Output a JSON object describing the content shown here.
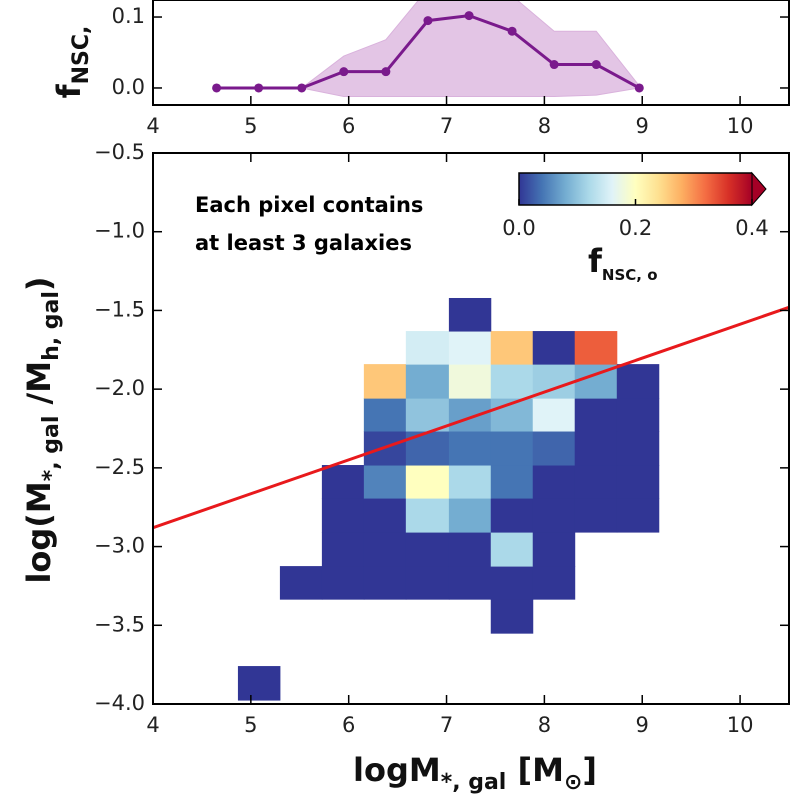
{
  "chart_data": [
    {
      "type": "line",
      "ylabel": {
        "text": [
          "f"
        ],
        "sub": [
          "NSC,"
        ]
      },
      "x": [
        4.65,
        5.08,
        5.52,
        5.95,
        6.38,
        6.81,
        7.23,
        7.67,
        8.1,
        8.53,
        8.97
      ],
      "values": [
        0,
        0,
        0,
        0.023,
        0.023,
        0.095,
        0.102,
        0.08,
        0.033,
        0.033,
        0
      ],
      "lower": [
        0,
        0,
        0,
        -0.012,
        -0.012,
        -0.012,
        -0.012,
        -0.012,
        -0.012,
        -0.01,
        0
      ],
      "upper": [
        0,
        0,
        0,
        0.045,
        0.068,
        0.14,
        0.16,
        0.13,
        0.08,
        0.08,
        0.003
      ],
      "color": "#7a1a8c",
      "band_color": "#d9b2dc",
      "xlim": [
        4,
        10.5
      ],
      "ylim": [
        -0.024,
        0.124
      ],
      "xticks": [
        4,
        5,
        6,
        7,
        8,
        9,
        10
      ],
      "yticks": [
        {
          "value": 0,
          "label": "0.0"
        },
        0.1
      ]
    },
    {
      "type": "heatmap",
      "annotation": [
        "Each pixel contains",
        "at least 3 galaxies"
      ],
      "xlabel": {
        "text": [
          "logM",
          " [M",
          "]"
        ],
        "sub": [
          "*, gal",
          "⊙"
        ]
      },
      "ylabel": {
        "text": [
          "log(M",
          " /M",
          ")"
        ],
        "sub": [
          "*, gal",
          "h, gal"
        ]
      },
      "x_edges": [
        4.868,
        5.297,
        5.726,
        6.155,
        6.584,
        7.024,
        7.452,
        7.881,
        8.31,
        8.74,
        9.169
      ],
      "y_edges": [
        -3.975,
        -3.759,
        -3.55,
        -3.334,
        -3.124,
        -2.908,
        -2.692,
        -2.482,
        -2.266,
        -2.057,
        -1.841,
        -1.631,
        -1.421
      ],
      "values": [
        [
          0,
          null,
          null,
          null,
          null,
          null,
          null,
          null,
          null,
          null
        ],
        [
          null,
          null,
          null,
          null,
          null,
          null,
          null,
          null,
          null,
          null
        ],
        [
          null,
          null,
          null,
          null,
          null,
          null,
          0,
          null,
          null,
          null
        ],
        [
          null,
          0,
          0,
          0,
          0,
          0,
          0,
          0,
          null,
          null
        ],
        [
          null,
          null,
          0,
          0,
          0,
          0,
          0.12,
          0,
          null,
          null
        ],
        [
          null,
          null,
          0,
          0,
          0.12,
          0.08,
          0,
          0,
          0,
          0
        ],
        [
          null,
          null,
          0,
          0.05,
          0.2,
          0.12,
          0.04,
          0,
          0,
          0
        ],
        [
          null,
          null,
          null,
          0.01,
          0.03,
          0.04,
          0.04,
          0.03,
          0,
          0
        ],
        [
          null,
          null,
          null,
          0.04,
          0.1,
          0.07,
          0.09,
          0.16,
          0,
          0
        ],
        [
          null,
          null,
          null,
          0.26,
          0.08,
          0.18,
          0.12,
          0.11,
          0.08,
          0
        ],
        [
          null,
          null,
          null,
          null,
          0.15,
          0.16,
          0.26,
          0,
          0.33,
          null
        ],
        [
          null,
          null,
          null,
          null,
          null,
          0,
          null,
          null,
          null,
          null
        ]
      ],
      "colormap": [
        "#313695",
        "#4575b4",
        "#74add1",
        "#abd9e9",
        "#e0f3f8",
        "#ffffbf",
        "#fee090",
        "#fdae61",
        "#f46d43",
        "#d73027",
        "#a50026"
      ],
      "colorbar": {
        "lim": [
          0,
          0.4
        ],
        "ticks": [
          {
            "value": 0,
            "label": "0.0"
          },
          0.2,
          0.4
        ],
        "extend": "max",
        "label": {
          "text": [
            "f"
          ],
          "sub": [
            "NSC, o"
          ]
        }
      },
      "fit": {
        "x": [
          4,
          10.5
        ],
        "y": [
          -2.88,
          -1.48
        ],
        "color": "#e8191c"
      },
      "xlim": [
        4,
        10.5
      ],
      "ylim": [
        -4.0,
        -0.5
      ],
      "xticks": [
        4,
        5,
        6,
        7,
        8,
        9,
        10
      ],
      "yticks": [
        {
          "value": -4.0,
          "label": "−4.0"
        },
        {
          "value": -3.5,
          "label": "−3.5"
        },
        {
          "value": -3.0,
          "label": "−3.0"
        },
        {
          "value": -2.5,
          "label": "−2.5"
        },
        {
          "value": -2.0,
          "label": "−2.0"
        },
        {
          "value": -1.5,
          "label": "−1.5"
        },
        {
          "value": -1.0,
          "label": "−1.0"
        },
        {
          "value": -0.5,
          "label": "−0.5"
        }
      ]
    }
  ]
}
